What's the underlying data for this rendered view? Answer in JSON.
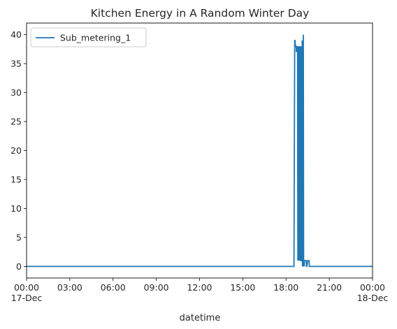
{
  "chart_data": {
    "type": "line",
    "title": "Kitchen Energy in A Random Winter Day",
    "xlabel": "datetime",
    "ylabel": "",
    "x_unit": "hours",
    "xlim": [
      0,
      24
    ],
    "ylim": [
      -2,
      42
    ],
    "y_ticks": [
      0,
      5,
      10,
      15,
      20,
      25,
      30,
      35,
      40
    ],
    "x_ticks": [
      {
        "value": 0,
        "label": "00:00",
        "sublabel": "17-Dec"
      },
      {
        "value": 3,
        "label": "03:00",
        "sublabel": ""
      },
      {
        "value": 6,
        "label": "06:00",
        "sublabel": ""
      },
      {
        "value": 9,
        "label": "09:00",
        "sublabel": ""
      },
      {
        "value": 12,
        "label": "12:00",
        "sublabel": ""
      },
      {
        "value": 15,
        "label": "15:00",
        "sublabel": ""
      },
      {
        "value": 18,
        "label": "18:00",
        "sublabel": ""
      },
      {
        "value": 21,
        "label": "21:00",
        "sublabel": ""
      },
      {
        "value": 24,
        "label": "00:00",
        "sublabel": "18-Dec"
      }
    ],
    "legend_position": "top-left",
    "grid": false,
    "series": [
      {
        "name": "Sub_metering_1",
        "color": "#1f77b4",
        "x": [
          0,
          18.55,
          18.6,
          18.62,
          18.65,
          18.7,
          18.72,
          18.75,
          18.78,
          18.8,
          18.82,
          18.85,
          18.86,
          18.88,
          18.9,
          18.92,
          18.94,
          18.96,
          18.98,
          19.0,
          19.02,
          19.04,
          19.06,
          19.08,
          19.1,
          19.12,
          19.14,
          19.16,
          19.18,
          19.2,
          19.22,
          19.24,
          19.26,
          19.28,
          19.3,
          19.32,
          19.34,
          19.36,
          19.38,
          19.4,
          19.42,
          19.45,
          19.5,
          19.55,
          19.6,
          19.62,
          19.65,
          24
        ],
        "y": [
          0,
          0,
          39,
          39,
          38,
          38,
          37,
          38,
          37,
          38,
          1,
          38,
          1,
          37,
          1,
          37,
          38,
          1,
          37,
          38,
          1,
          1,
          38,
          1,
          1,
          39,
          0,
          39,
          0,
          40,
          1,
          1,
          0,
          1,
          1,
          1,
          1,
          1,
          1,
          1,
          0,
          0,
          1,
          1,
          1,
          0,
          0,
          0
        ]
      }
    ]
  }
}
